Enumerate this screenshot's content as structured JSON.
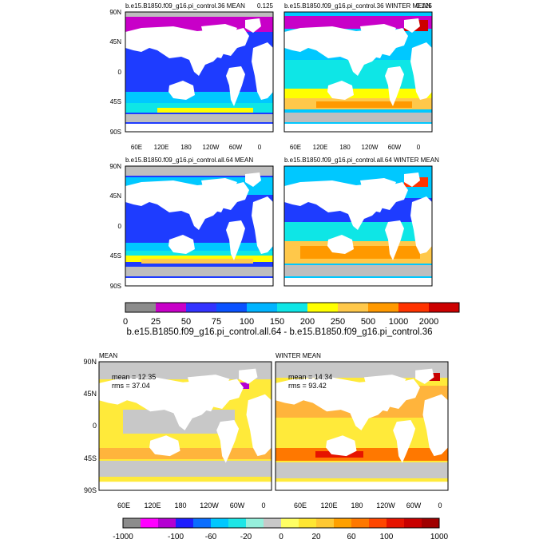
{
  "chart_data": [
    {
      "type": "heatmap",
      "title_left": "b.e15.B1850.f09_g16.pi_control.36 MEAN",
      "title_right": "0.125",
      "y_ticks": [
        "90N",
        "45N",
        "0",
        "45S",
        "90S"
      ],
      "x_ticks": [
        "60E",
        "120E",
        "180",
        "120W",
        "60W",
        "0"
      ],
      "ylim": [
        -90,
        90
      ],
      "xlim": [
        30,
        390
      ],
      "legend": "bottom"
    },
    {
      "type": "heatmap",
      "title_left": "b.e15.B1850.f09_g16.pi_control.36 WINTER MEAN",
      "title_right": "0.125",
      "x_ticks": [
        "60E",
        "120E",
        "180",
        "120W",
        "60W",
        "0"
      ],
      "ylim": [
        -90,
        90
      ],
      "xlim": [
        30,
        390
      ]
    },
    {
      "type": "heatmap",
      "title_left": "b.e15.B1850.f09_g16.pi_control.all.64 MEAN",
      "title_right": "",
      "y_ticks": [
        "90N",
        "45N",
        "0",
        "45S",
        "90S"
      ],
      "ylim": [
        -90,
        90
      ],
      "xlim": [
        30,
        390
      ]
    },
    {
      "type": "heatmap",
      "title_left": "b.e15.B1850.f09_g16.pi_control.all.64 WINTER MEAN",
      "title_right": "",
      "ylim": [
        -90,
        90
      ],
      "xlim": [
        30,
        390
      ]
    },
    {
      "type": "heatmap",
      "title_left": "MEAN",
      "stats": {
        "mean": "mean = 12.35",
        "rms": "rms = 37.04"
      },
      "y_ticks": [
        "90N",
        "45N",
        "0",
        "45S",
        "90S"
      ],
      "x_ticks": [
        "60E",
        "120E",
        "180",
        "120W",
        "60W",
        "0"
      ],
      "ylim": [
        -90,
        90
      ],
      "xlim": [
        30,
        390
      ]
    },
    {
      "type": "heatmap",
      "title_left": "WINTER MEAN",
      "stats": {
        "mean": "mean = 14.34",
        "rms": "rms = 93.42"
      },
      "x_ticks": [
        "60E",
        "120E",
        "180",
        "120W",
        "60W",
        "0"
      ],
      "ylim": [
        -90,
        90
      ],
      "xlim": [
        30,
        390
      ]
    }
  ],
  "difference_title": "b.e15.B1850.f09_g16.pi_control.all.64 - b.e15.B1850.f09_g16.pi_control.36",
  "colorbar_top": {
    "levels": [
      "0",
      "25",
      "50",
      "75",
      "100",
      "150",
      "200",
      "250",
      "500",
      "1000",
      "2000"
    ],
    "colors": [
      "#8c8c8c",
      "#c800c8",
      "#3333ff",
      "#0a52ff",
      "#00b4ff",
      "#0ee6e6",
      "#ffff00",
      "#ffc84a",
      "#ff9900",
      "#ff3300",
      "#cc0000"
    ]
  },
  "colorbar_bottom": {
    "labels": [
      "-1000",
      "-100",
      "-60",
      "-20",
      "0",
      "20",
      "60",
      "100",
      "1000"
    ],
    "colors": [
      "#8c8c8c",
      "#ff00ff",
      "#b400d2",
      "#1e1eff",
      "#0a6eff",
      "#00c8ff",
      "#1ee6e6",
      "#96f0dc",
      "#c8c8c8",
      "#ffff64",
      "#ffe632",
      "#ffc832",
      "#ffa000",
      "#ff7800",
      "#ff4600",
      "#e61400",
      "#c80000",
      "#a00000"
    ]
  },
  "map_palette": {
    "land": "#ffffff",
    "ice_gray": "#bebebe",
    "magenta": "#c800c8",
    "blue": "#1e3cff",
    "cyan": "#00c8ff",
    "aqua": "#0ee6e6",
    "yellow": "#ffff00",
    "orange": "#ffc84a",
    "deep_orange": "#ff9900",
    "red": "#ff3300",
    "dark_red": "#cc0000",
    "diff_yellow": "#ffea3a",
    "diff_orange": "#ffb43c",
    "diff_gray": "#c8c8c8"
  }
}
